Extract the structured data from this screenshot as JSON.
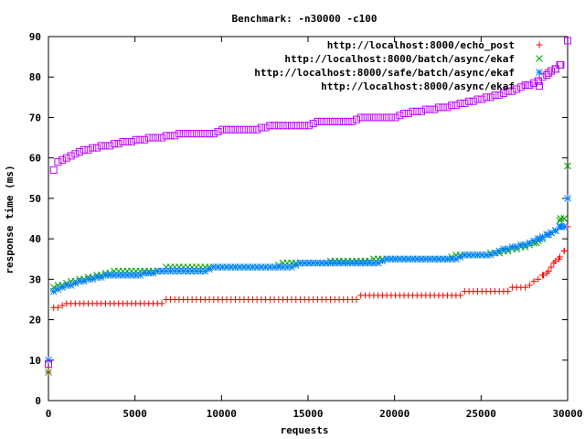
{
  "chart_data": {
    "type": "scatter",
    "title": "Benchmark: -n30000 -c100",
    "xlabel": "requests",
    "ylabel": "response time (ms)",
    "xlim": [
      0,
      30000
    ],
    "ylim": [
      0,
      90
    ],
    "xticks": [
      0,
      5000,
      10000,
      15000,
      20000,
      25000,
      30000
    ],
    "yticks": [
      0,
      10,
      20,
      30,
      40,
      50,
      60,
      70,
      80,
      90
    ],
    "grid": false,
    "legend_position": "top-right",
    "series": [
      {
        "name": "http://localhost:8000/echo_post",
        "marker": "plus",
        "color": "#ff0000",
        "points": [
          [
            0,
            7
          ],
          [
            300,
            23
          ],
          [
            600,
            23
          ],
          [
            900,
            24
          ],
          [
            2000,
            24
          ],
          [
            4000,
            24
          ],
          [
            6500,
            24
          ],
          [
            6800,
            25
          ],
          [
            10000,
            25
          ],
          [
            15000,
            25
          ],
          [
            17800,
            25
          ],
          [
            18000,
            26
          ],
          [
            20000,
            26
          ],
          [
            23800,
            26
          ],
          [
            24000,
            27
          ],
          [
            26500,
            27
          ],
          [
            26800,
            28
          ],
          [
            27600,
            28
          ],
          [
            27900,
            29
          ],
          [
            28300,
            30
          ],
          [
            28600,
            31
          ],
          [
            28900,
            32
          ],
          [
            29200,
            34
          ],
          [
            29500,
            35
          ],
          [
            29800,
            37
          ],
          [
            30000,
            43
          ]
        ]
      },
      {
        "name": "http://localhost:8000/batch/async/ekaf",
        "marker": "cross",
        "color": "#00a000",
        "points": [
          [
            0,
            7
          ],
          [
            300,
            28
          ],
          [
            1000,
            29
          ],
          [
            2000,
            30
          ],
          [
            3000,
            31
          ],
          [
            3800,
            32
          ],
          [
            5000,
            32
          ],
          [
            6500,
            32
          ],
          [
            6800,
            33
          ],
          [
            10000,
            33
          ],
          [
            13000,
            33
          ],
          [
            13500,
            34
          ],
          [
            15000,
            34
          ],
          [
            20000,
            35
          ],
          [
            23000,
            35
          ],
          [
            23500,
            36
          ],
          [
            25000,
            36
          ],
          [
            26500,
            37
          ],
          [
            27500,
            38
          ],
          [
            28200,
            39
          ],
          [
            28800,
            41
          ],
          [
            29300,
            42
          ],
          [
            29600,
            45
          ],
          [
            29800,
            45
          ],
          [
            30000,
            58
          ]
        ]
      },
      {
        "name": "http://localhost:8000/safe/batch/async/ekaf",
        "marker": "star",
        "color": "#0080ff",
        "points": [
          [
            0,
            10
          ],
          [
            300,
            27
          ],
          [
            800,
            28
          ],
          [
            1500,
            29
          ],
          [
            2500,
            30
          ],
          [
            3500,
            31
          ],
          [
            5000,
            31
          ],
          [
            6500,
            32
          ],
          [
            9000,
            32
          ],
          [
            9500,
            33
          ],
          [
            14000,
            33
          ],
          [
            14500,
            34
          ],
          [
            19000,
            34
          ],
          [
            19500,
            35
          ],
          [
            23500,
            35
          ],
          [
            24000,
            36
          ],
          [
            25500,
            36
          ],
          [
            26000,
            37
          ],
          [
            27000,
            38
          ],
          [
            27800,
            39
          ],
          [
            28400,
            40
          ],
          [
            28900,
            41
          ],
          [
            29300,
            42
          ],
          [
            29600,
            43
          ],
          [
            29800,
            43
          ],
          [
            30000,
            50
          ]
        ]
      },
      {
        "name": "http://localhost:8000/async/ekaf",
        "marker": "square",
        "color": "#c000ff",
        "points": [
          [
            0,
            9
          ],
          [
            300,
            57
          ],
          [
            500,
            59
          ],
          [
            1000,
            60
          ],
          [
            1500,
            61
          ],
          [
            2200,
            62
          ],
          [
            3300,
            63
          ],
          [
            4500,
            64
          ],
          [
            6200,
            65
          ],
          [
            7800,
            66
          ],
          [
            9500,
            66
          ],
          [
            10200,
            67
          ],
          [
            12000,
            67
          ],
          [
            12800,
            68
          ],
          [
            15000,
            68
          ],
          [
            15500,
            69
          ],
          [
            17500,
            69
          ],
          [
            18000,
            70
          ],
          [
            20000,
            70
          ],
          [
            20500,
            71
          ],
          [
            22000,
            72
          ],
          [
            23500,
            73
          ],
          [
            24500,
            74
          ],
          [
            25500,
            75
          ],
          [
            26300,
            76
          ],
          [
            27000,
            77
          ],
          [
            27700,
            78
          ],
          [
            28300,
            79
          ],
          [
            28900,
            81
          ],
          [
            29300,
            82
          ],
          [
            29600,
            83
          ],
          [
            30000,
            89
          ]
        ]
      }
    ]
  }
}
